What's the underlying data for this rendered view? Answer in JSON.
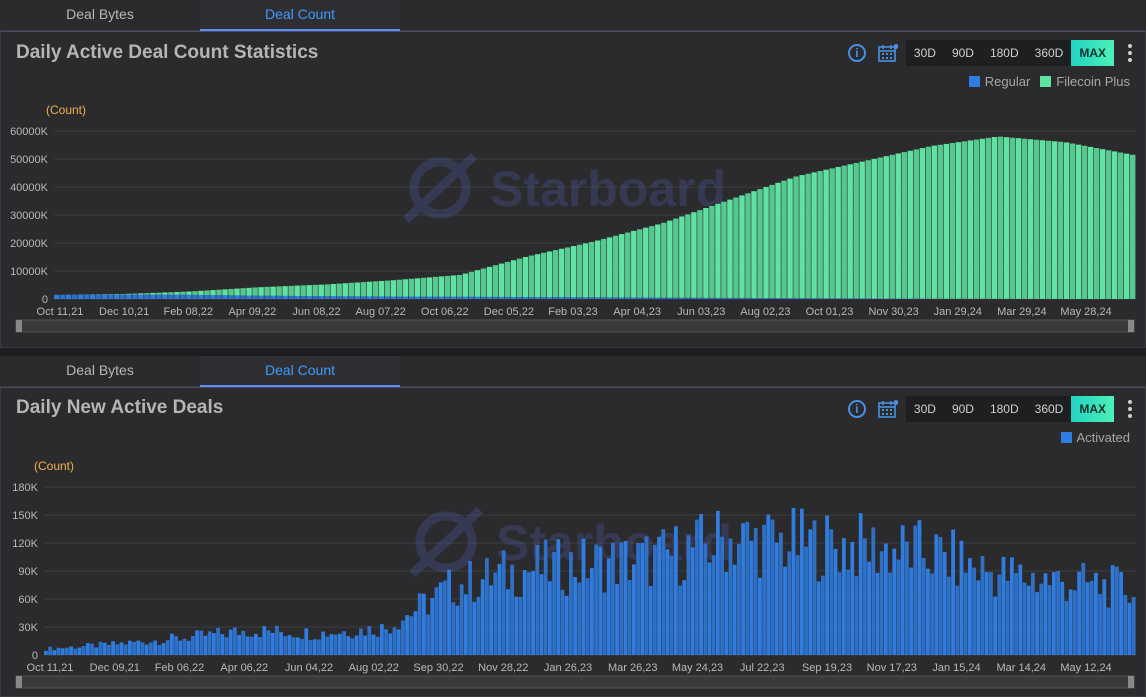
{
  "top": {
    "tabs": [
      {
        "label": "Deal Bytes",
        "active": false
      },
      {
        "label": "Deal Count",
        "active": true
      }
    ],
    "title": "Daily Active Deal Count Statistics",
    "info_icon": "info-icon",
    "calendar_icon": "calendar-icon",
    "ranges": [
      "30D",
      "90D",
      "180D",
      "360D",
      "MAX"
    ],
    "active_range": "MAX",
    "legend": [
      {
        "name": "Regular",
        "color": "#2f7de1"
      },
      {
        "name": "Filecoin Plus",
        "color": "#5fe3a1"
      }
    ],
    "watermark": "Starboard"
  },
  "bottom": {
    "tabs": [
      {
        "label": "Deal Bytes",
        "active": false
      },
      {
        "label": "Deal Count",
        "active": true
      }
    ],
    "title": "Daily New Active Deals",
    "info_icon": "info-icon",
    "calendar_icon": "calendar-icon",
    "ranges": [
      "30D",
      "90D",
      "180D",
      "360D",
      "MAX"
    ],
    "active_range": "MAX",
    "legend": [
      {
        "name": "Activated",
        "color": "#2f7de1"
      }
    ],
    "watermark": "Starboard"
  },
  "chart_data": [
    {
      "type": "area",
      "title": "Daily Active Deal Count Statistics",
      "ylabel": "(Count)",
      "ylim": [
        0,
        60000
      ],
      "y_ticks": [
        "0",
        "10000K",
        "20000K",
        "30000K",
        "40000K",
        "50000K",
        "60000K"
      ],
      "x_ticks": [
        "Oct 11,21",
        "Dec 10,21",
        "Feb 08,22",
        "Apr 09,22",
        "Jun 08,22",
        "Aug 07,22",
        "Oct 06,22",
        "Dec 05,22",
        "Feb 03,23",
        "Apr 04,23",
        "Jun 03,23",
        "Aug 02,23",
        "Oct 01,23",
        "Nov 30,23",
        "Jan 29,24",
        "Mar 29,24",
        "May 28,24"
      ],
      "series": [
        {
          "name": "Regular",
          "color": "#2f7de1",
          "values": [
            1500,
            1600,
            1500,
            1200,
            1000,
            900,
            800,
            700,
            600,
            500,
            400,
            300,
            200,
            100,
            50,
            0,
            0
          ]
        },
        {
          "name": "Filecoin Plus",
          "color": "#5fe3a1",
          "values": [
            0,
            200,
            1200,
            3000,
            4200,
            5800,
            7800,
            14500,
            20000,
            26500,
            35000,
            43500,
            49000,
            54500,
            58000,
            56000,
            51500
          ]
        }
      ]
    },
    {
      "type": "bar",
      "title": "Daily New Active Deals",
      "ylabel": "(Count)",
      "ylim": [
        0,
        180000
      ],
      "y_ticks": [
        "0",
        "30K",
        "60K",
        "90K",
        "120K",
        "150K",
        "180K"
      ],
      "x_ticks": [
        "Oct 11,21",
        "Dec 09,21",
        "Feb 06,22",
        "Apr 06,22",
        "Jun 04,22",
        "Aug 02,22",
        "Sep 30,22",
        "Nov 28,22",
        "Jan 26,23",
        "Mar 26,23",
        "May 24,23",
        "Jul 22,23",
        "Sep 19,23",
        "Nov 17,23",
        "Jan 15,24",
        "Mar 14,24",
        "May 12,24"
      ],
      "series": [
        {
          "name": "Activated",
          "color": "#2f7de1",
          "values": [
            8000,
            14000,
            22000,
            32000,
            28000,
            35000,
            90000,
            110000,
            118000,
            125000,
            150000,
            145000,
            140000,
            132000,
            105000,
            95000,
            85000
          ]
        }
      ]
    }
  ]
}
